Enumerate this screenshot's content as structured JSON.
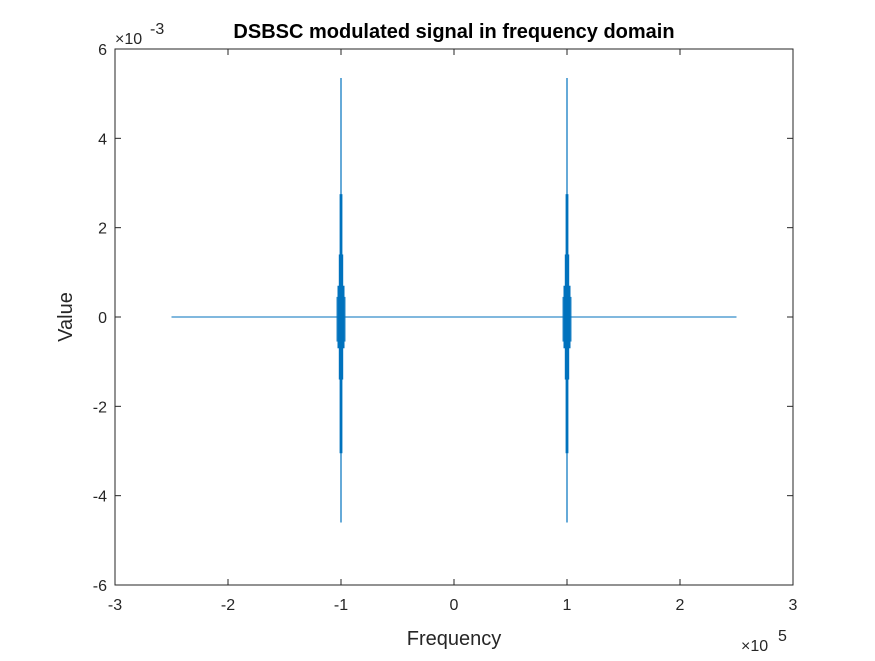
{
  "chart_data": {
    "type": "line",
    "title": "DSBSC modulated signal in frequency domain",
    "xlabel": "Frequency",
    "ylabel": "Value",
    "xlim": [
      -3,
      3
    ],
    "ylim": [
      -6,
      6
    ],
    "x_exponent_label": "×10",
    "x_exponent": "5",
    "y_exponent_label": "×10",
    "y_exponent": "-3",
    "x_ticks": [
      -3,
      -2,
      -1,
      0,
      1,
      2,
      3
    ],
    "x_tick_labels": [
      "-3",
      "-2",
      "-1",
      "0",
      "1",
      "2",
      "3"
    ],
    "y_ticks": [
      -6,
      -4,
      -2,
      0,
      2,
      4,
      6
    ],
    "y_tick_labels": [
      "-6",
      "-4",
      "-2",
      "0",
      "2",
      "4",
      "6"
    ],
    "grid": false,
    "legend": "none",
    "series_color": "#0072BD",
    "series": [
      {
        "x_range": [
          -2.5,
          2.5
        ],
        "baseline": 0,
        "spikes": [
          {
            "x": -1,
            "max": 5.35,
            "min": -4.6,
            "dense_max": 1.4,
            "dense_min": -1.4
          },
          {
            "x": 1,
            "max": 5.35,
            "min": -4.6,
            "dense_max": 1.4,
            "dense_min": -1.4
          }
        ]
      }
    ]
  }
}
